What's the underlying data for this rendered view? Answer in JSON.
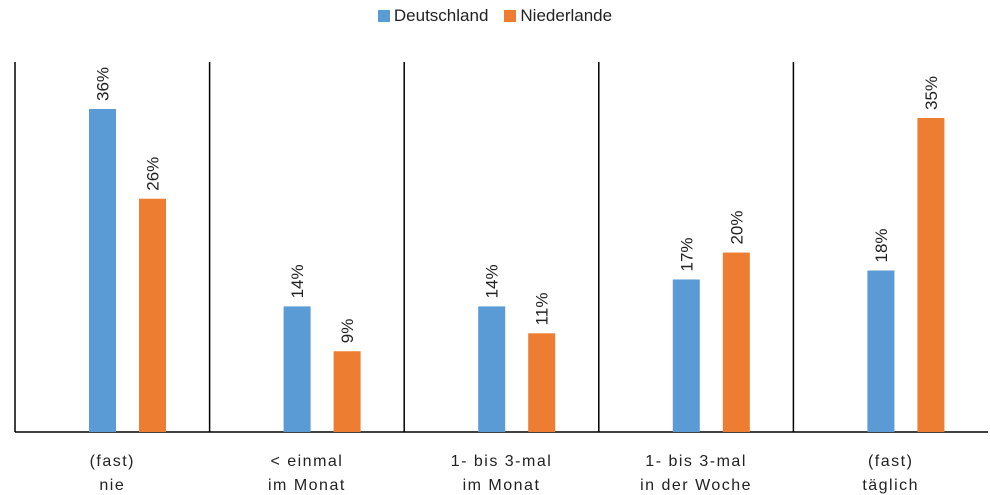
{
  "chart_data": {
    "type": "bar",
    "title": "",
    "xlabel": "",
    "ylabel": "",
    "ylim": [
      0,
      40
    ],
    "grid": false,
    "legend_position": "top-center",
    "categories": [
      [
        "(fast)",
        "nie"
      ],
      [
        "< einmal",
        "im Monat"
      ],
      [
        "1- bis 3-mal",
        "im Monat"
      ],
      [
        "1- bis 3-mal",
        "in der Woche"
      ],
      [
        "(fast)",
        "täglich"
      ]
    ],
    "series": [
      {
        "name": "Deutschland",
        "color": "#5b9bd5",
        "values": [
          36,
          14,
          14,
          17,
          18
        ],
        "labels": [
          "36%",
          "14%",
          "14%",
          "17%",
          "18%"
        ]
      },
      {
        "name": "Niederlande",
        "color": "#ed7d31",
        "values": [
          26,
          9,
          11,
          20,
          35
        ],
        "labels": [
          "26%",
          "9%",
          "11%",
          "20%",
          "35%"
        ]
      }
    ]
  }
}
